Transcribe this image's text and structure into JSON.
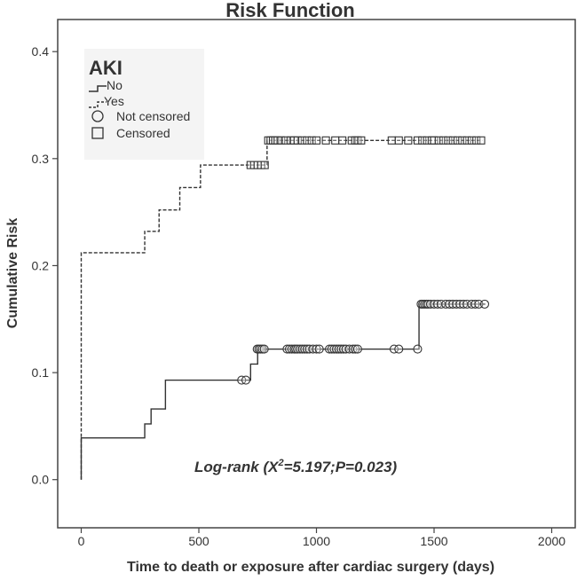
{
  "chart_data": {
    "type": "line",
    "title": "Risk Function",
    "xlabel": "Time to death or exposure after cardiac surgery (days)",
    "ylabel": "Cumulative Risk",
    "xlim": [
      -100,
      2100
    ],
    "ylim": [
      -0.045,
      0.43
    ],
    "xticks": [
      0,
      500,
      1000,
      1500,
      2000
    ],
    "yticks": [
      "0.0",
      "0.1",
      "0.2",
      "0.3",
      "0.4"
    ],
    "grid": false,
    "step": true,
    "legend": {
      "title": "AKI",
      "placement": "top-left",
      "entries": [
        "No",
        "Yes",
        "Not censored",
        "Censored"
      ]
    },
    "annotation": {
      "prefix": "Log-rank (X",
      "sup": "2",
      "suffix": "=5.197;P=0.023)"
    },
    "series": [
      {
        "name": "No",
        "line": "solid",
        "color": "#333333",
        "steps": [
          [
            0,
            0
          ],
          [
            0,
            0.039
          ],
          [
            270,
            0.052
          ],
          [
            297,
            0.066
          ],
          [
            358,
            0.093
          ],
          [
            720,
            0.108
          ],
          [
            750,
            0.122
          ],
          [
            1436,
            0.164
          ],
          [
            1718,
            0.164
          ]
        ],
        "marker": "circle",
        "censored": [
          [
            682,
            0.093
          ],
          [
            700,
            0.093
          ],
          [
            748,
            0.122
          ],
          [
            755,
            0.122
          ],
          [
            762,
            0.122
          ],
          [
            770,
            0.122
          ],
          [
            778,
            0.122
          ],
          [
            875,
            0.122
          ],
          [
            885,
            0.122
          ],
          [
            895,
            0.122
          ],
          [
            905,
            0.122
          ],
          [
            912,
            0.122
          ],
          [
            920,
            0.122
          ],
          [
            930,
            0.122
          ],
          [
            940,
            0.122
          ],
          [
            950,
            0.122
          ],
          [
            960,
            0.122
          ],
          [
            970,
            0.122
          ],
          [
            985,
            0.122
          ],
          [
            1000,
            0.122
          ],
          [
            1012,
            0.122
          ],
          [
            1055,
            0.122
          ],
          [
            1065,
            0.122
          ],
          [
            1075,
            0.122
          ],
          [
            1085,
            0.122
          ],
          [
            1095,
            0.122
          ],
          [
            1105,
            0.122
          ],
          [
            1115,
            0.122
          ],
          [
            1125,
            0.122
          ],
          [
            1140,
            0.122
          ],
          [
            1155,
            0.122
          ],
          [
            1165,
            0.122
          ],
          [
            1175,
            0.122
          ],
          [
            1330,
            0.122
          ],
          [
            1350,
            0.122
          ],
          [
            1430,
            0.122
          ],
          [
            1445,
            0.164
          ],
          [
            1452,
            0.164
          ],
          [
            1460,
            0.164
          ],
          [
            1468,
            0.164
          ],
          [
            1475,
            0.164
          ],
          [
            1485,
            0.164
          ],
          [
            1500,
            0.164
          ],
          [
            1515,
            0.164
          ],
          [
            1530,
            0.164
          ],
          [
            1550,
            0.164
          ],
          [
            1565,
            0.164
          ],
          [
            1580,
            0.164
          ],
          [
            1595,
            0.164
          ],
          [
            1610,
            0.164
          ],
          [
            1625,
            0.164
          ],
          [
            1640,
            0.164
          ],
          [
            1660,
            0.164
          ],
          [
            1675,
            0.164
          ],
          [
            1690,
            0.164
          ],
          [
            1715,
            0.164
          ]
        ]
      },
      {
        "name": "Yes",
        "line": "dashed",
        "color": "#333333",
        "steps": [
          [
            0,
            0
          ],
          [
            0,
            0.212
          ],
          [
            270,
            0.232
          ],
          [
            331,
            0.252
          ],
          [
            419,
            0.273
          ],
          [
            507,
            0.294
          ],
          [
            790,
            0.317
          ],
          [
            1705,
            0.317
          ]
        ],
        "marker": "square",
        "censored": [
          [
            720,
            0.294
          ],
          [
            735,
            0.294
          ],
          [
            750,
            0.294
          ],
          [
            765,
            0.294
          ],
          [
            780,
            0.294
          ],
          [
            795,
            0.317
          ],
          [
            805,
            0.317
          ],
          [
            815,
            0.317
          ],
          [
            825,
            0.317
          ],
          [
            835,
            0.317
          ],
          [
            850,
            0.317
          ],
          [
            870,
            0.317
          ],
          [
            890,
            0.317
          ],
          [
            905,
            0.317
          ],
          [
            920,
            0.317
          ],
          [
            940,
            0.317
          ],
          [
            960,
            0.317
          ],
          [
            980,
            0.317
          ],
          [
            1000,
            0.317
          ],
          [
            1040,
            0.317
          ],
          [
            1080,
            0.317
          ],
          [
            1110,
            0.317
          ],
          [
            1150,
            0.317
          ],
          [
            1165,
            0.317
          ],
          [
            1175,
            0.317
          ],
          [
            1190,
            0.317
          ],
          [
            1320,
            0.317
          ],
          [
            1350,
            0.317
          ],
          [
            1390,
            0.317
          ],
          [
            1430,
            0.317
          ],
          [
            1450,
            0.317
          ],
          [
            1470,
            0.317
          ],
          [
            1490,
            0.317
          ],
          [
            1500,
            0.317
          ],
          [
            1520,
            0.317
          ],
          [
            1540,
            0.317
          ],
          [
            1560,
            0.317
          ],
          [
            1580,
            0.317
          ],
          [
            1600,
            0.317
          ],
          [
            1620,
            0.317
          ],
          [
            1640,
            0.317
          ],
          [
            1660,
            0.317
          ],
          [
            1680,
            0.317
          ],
          [
            1700,
            0.317
          ]
        ]
      }
    ]
  }
}
